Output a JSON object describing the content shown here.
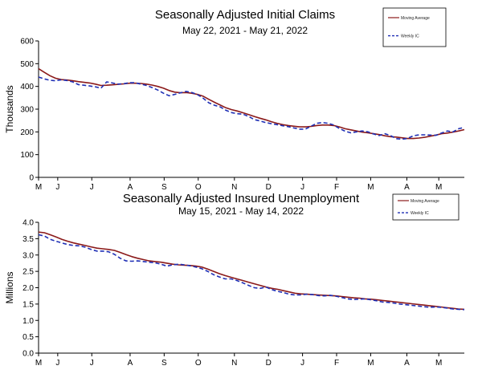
{
  "chart_data": [
    {
      "type": "line",
      "title": "Seasonally Adjusted Initial Claims",
      "subtitle": "May 22, 2021 - May 21, 2022",
      "ylabel": "Thousands",
      "xlabel": "",
      "ylim": [
        0,
        600
      ],
      "yticks": [
        "0",
        "100",
        "200",
        "300",
        "400",
        "500",
        "600"
      ],
      "xticks": [
        "M",
        "J",
        "J",
        "A",
        "S",
        "O",
        "N",
        "D",
        "J",
        "F",
        "M",
        "A",
        "M"
      ],
      "grid": false,
      "legend_position": "top-right",
      "colors": {
        "moving_average": "#8b1a1a",
        "weekly": "#1f2fb5"
      },
      "series": [
        {
          "name": "Moving Average",
          "style": "solid",
          "values": [
            478,
            462,
            447,
            436,
            430,
            428,
            425,
            421,
            418,
            415,
            410,
            404,
            405,
            407,
            409,
            411,
            414,
            414,
            413,
            410,
            406,
            400,
            392,
            382,
            375,
            372,
            373,
            370,
            365,
            357,
            343,
            330,
            318,
            306,
            298,
            292,
            284,
            276,
            268,
            260,
            253,
            245,
            238,
            232,
            228,
            225,
            222,
            222,
            224,
            228,
            230,
            230,
            228,
            222,
            214,
            209,
            204,
            199,
            196,
            192,
            188,
            183,
            179,
            177,
            174,
            171,
            171,
            173,
            176,
            181,
            186,
            192,
            195,
            199,
            204,
            210
          ]
        },
        {
          "name": "Weekly IC",
          "style": "dashed",
          "values": [
            441,
            433,
            427,
            425,
            429,
            426,
            420,
            408,
            405,
            402,
            398,
            392,
            420,
            415,
            410,
            412,
            416,
            416,
            410,
            404,
            395,
            384,
            370,
            359,
            365,
            372,
            378,
            373,
            364,
            348,
            328,
            317,
            310,
            295,
            285,
            280,
            278,
            268,
            254,
            248,
            241,
            236,
            232,
            227,
            223,
            217,
            212,
            212,
            225,
            238,
            241,
            238,
            230,
            215,
            203,
            196,
            200,
            204,
            200,
            191,
            184,
            192,
            184,
            170,
            168,
            171,
            183,
            187,
            187,
            186,
            185,
            195,
            204,
            200,
            214,
            220
          ]
        }
      ],
      "legend": [
        "Moving Average",
        "Weekly IC"
      ]
    },
    {
      "type": "line",
      "title": "Seasonally Adjusted Insured Unemployment",
      "subtitle": "May 15, 2021 - May 14, 2022",
      "ylabel": "Millions",
      "xlabel": "",
      "ylim": [
        0,
        4
      ],
      "yticks": [
        "0.0",
        "0.5",
        "1.0",
        "1.5",
        "2.0",
        "2.5",
        "3.0",
        "3.5",
        "4.0"
      ],
      "xticks": [
        "M",
        "J",
        "J",
        "A",
        "S",
        "O",
        "N",
        "D",
        "J",
        "F",
        "M",
        "A",
        "M"
      ],
      "grid": false,
      "legend_position": "top-right",
      "colors": {
        "moving_average": "#8b1a1a",
        "weekly": "#1f2fb5"
      },
      "series": [
        {
          "name": "Moving Average",
          "style": "solid",
          "values": [
            3.7,
            3.68,
            3.62,
            3.55,
            3.48,
            3.42,
            3.37,
            3.33,
            3.29,
            3.25,
            3.21,
            3.19,
            3.17,
            3.14,
            3.08,
            3.01,
            2.95,
            2.9,
            2.86,
            2.82,
            2.8,
            2.78,
            2.75,
            2.72,
            2.7,
            2.69,
            2.68,
            2.66,
            2.63,
            2.57,
            2.5,
            2.43,
            2.37,
            2.32,
            2.27,
            2.22,
            2.17,
            2.12,
            2.07,
            2.02,
            1.98,
            1.95,
            1.91,
            1.87,
            1.83,
            1.81,
            1.8,
            1.79,
            1.78,
            1.77,
            1.76,
            1.75,
            1.73,
            1.71,
            1.69,
            1.68,
            1.66,
            1.65,
            1.63,
            1.61,
            1.59,
            1.57,
            1.55,
            1.53,
            1.51,
            1.49,
            1.47,
            1.45,
            1.43,
            1.41,
            1.39,
            1.37,
            1.35,
            1.34
          ]
        },
        {
          "name": "Weekly IC",
          "style": "dashed",
          "values": [
            3.62,
            3.58,
            3.48,
            3.42,
            3.37,
            3.32,
            3.29,
            3.28,
            3.24,
            3.17,
            3.12,
            3.12,
            3.1,
            3.02,
            2.9,
            2.82,
            2.81,
            2.82,
            2.8,
            2.78,
            2.76,
            2.72,
            2.66,
            2.7,
            2.72,
            2.7,
            2.67,
            2.63,
            2.58,
            2.5,
            2.4,
            2.33,
            2.27,
            2.27,
            2.22,
            2.15,
            2.07,
            2.0,
            1.98,
            2.02,
            1.94,
            1.89,
            1.85,
            1.8,
            1.78,
            1.78,
            1.8,
            1.79,
            1.76,
            1.75,
            1.77,
            1.74,
            1.7,
            1.66,
            1.64,
            1.65,
            1.66,
            1.63,
            1.6,
            1.56,
            1.55,
            1.53,
            1.5,
            1.48,
            1.46,
            1.44,
            1.42,
            1.4,
            1.41,
            1.4,
            1.38,
            1.35,
            1.34,
            1.33
          ]
        }
      ],
      "legend": [
        "Moving Average",
        "Weekly IC"
      ]
    }
  ]
}
